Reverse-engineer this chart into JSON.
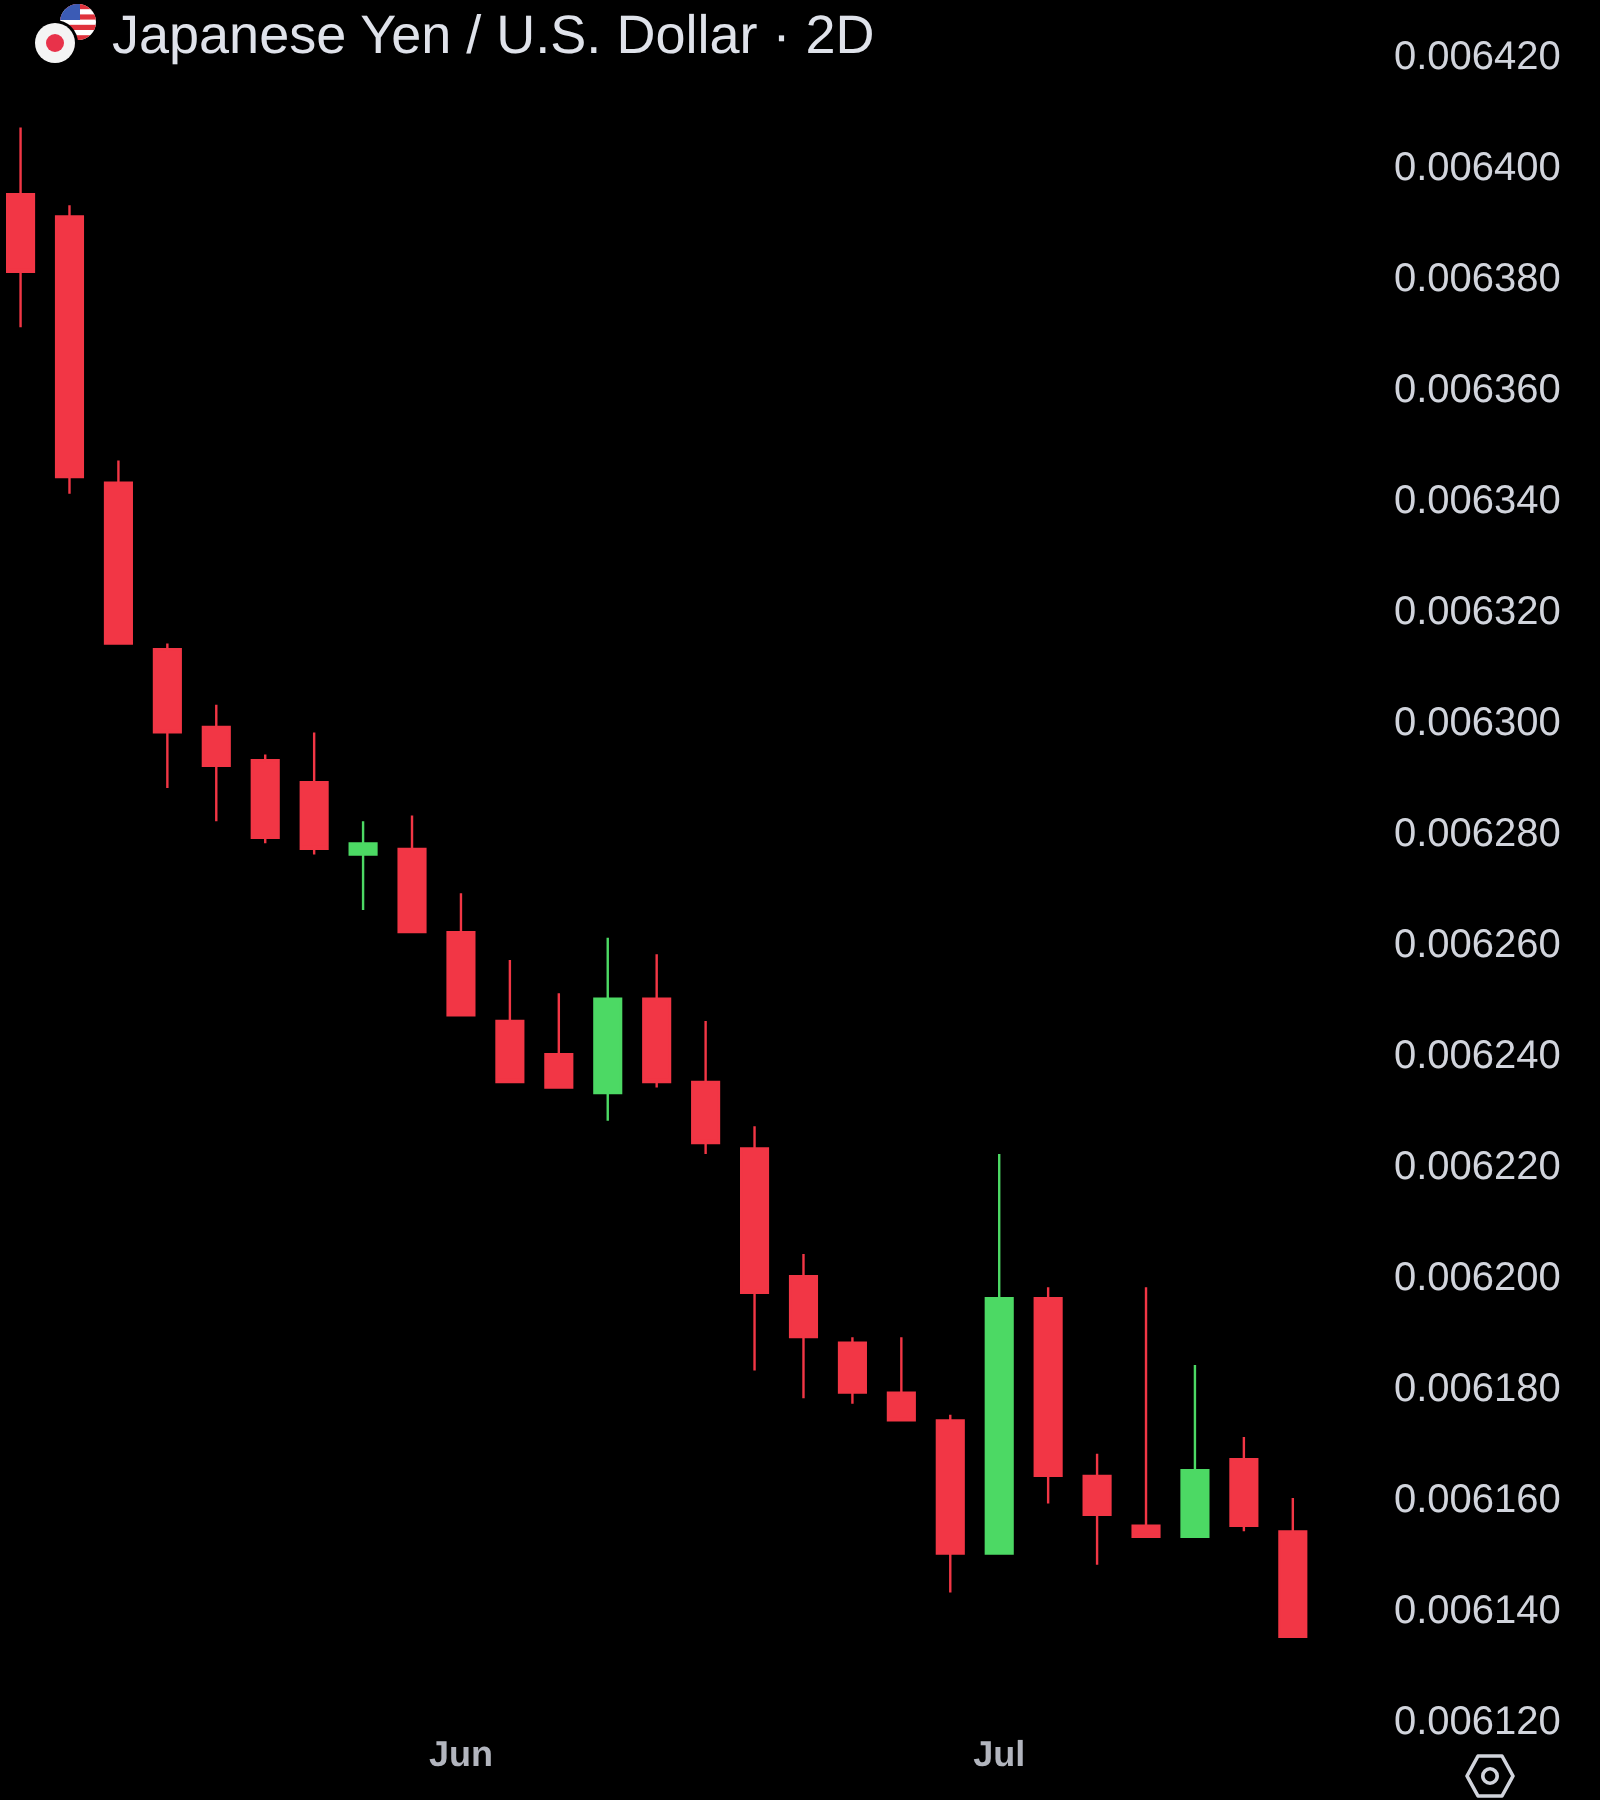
{
  "chart_data": {
    "type": "candlestick",
    "title": "Japanese Yen / U.S. Dollar · 2D",
    "categories": [
      null,
      null,
      null,
      null,
      null,
      null,
      null,
      null,
      null,
      "Jun",
      null,
      null,
      null,
      null,
      null,
      null,
      null,
      null,
      null,
      null,
      "Jul",
      null,
      null,
      null,
      null,
      null,
      null
    ],
    "ohlc": [
      [
        0.006395,
        0.006407,
        0.006371,
        0.006381
      ],
      [
        0.006391,
        0.006393,
        0.006341,
        0.006344
      ],
      [
        0.006343,
        0.006347,
        0.006314,
        0.006314
      ],
      [
        0.006313,
        0.006314,
        0.006288,
        0.006298
      ],
      [
        0.006299,
        0.006303,
        0.006282,
        0.006292
      ],
      [
        0.006293,
        0.006294,
        0.006278,
        0.006279
      ],
      [
        0.006289,
        0.006298,
        0.006276,
        0.006277
      ],
      [
        0.006276,
        0.006282,
        0.006266,
        0.006278
      ],
      [
        0.006277,
        0.006283,
        0.006262,
        0.006262
      ],
      [
        0.006262,
        0.006269,
        0.006247,
        0.006247
      ],
      [
        0.006246,
        0.006257,
        0.006235,
        0.006235
      ],
      [
        0.00624,
        0.006251,
        0.006234,
        0.006234
      ],
      [
        0.006233,
        0.006261,
        0.006228,
        0.00625
      ],
      [
        0.00625,
        0.006258,
        0.006234,
        0.006235
      ],
      [
        0.006235,
        0.006246,
        0.006222,
        0.006224
      ],
      [
        0.006223,
        0.006227,
        0.006183,
        0.006197
      ],
      [
        0.0062,
        0.006204,
        0.006178,
        0.006189
      ],
      [
        0.006188,
        0.006189,
        0.006177,
        0.006179
      ],
      [
        0.006179,
        0.006189,
        0.006174,
        0.006174
      ],
      [
        0.006174,
        0.006175,
        0.006143,
        0.00615
      ],
      [
        0.00615,
        0.006222,
        0.00615,
        0.006196
      ],
      [
        0.006196,
        0.006198,
        0.006159,
        0.006164
      ],
      [
        0.006164,
        0.006168,
        0.006148,
        0.006157
      ],
      [
        0.006155,
        0.006198,
        0.006153,
        0.006153
      ],
      [
        0.006153,
        0.006184,
        0.006153,
        0.006165
      ],
      [
        0.006167,
        0.006171,
        0.006154,
        0.006155
      ],
      [
        0.006154,
        0.00616,
        0.006135,
        0.006135
      ]
    ],
    "colors": [
      "#f23645",
      "#f23645",
      "#f23645",
      "#f23645",
      "#f23645",
      "#f23645",
      "#f23645",
      "#4cd964",
      "#f23645",
      "#f23645",
      "#f23645",
      "#f23645",
      "#4cd964",
      "#f23645",
      "#f23645",
      "#f23645",
      "#f23645",
      "#f23645",
      "#f23645",
      "#f23645",
      "#4cd964",
      "#f23645",
      "#f23645",
      "#f23645",
      "#4cd964",
      "#f23645",
      "#f23645"
    ],
    "ylim": [
      0.00612,
      0.00643
    ],
    "yticks": [
      {
        "value": 0.00612,
        "label": "0.006120"
      },
      {
        "value": 0.00614,
        "label": "0.006140"
      },
      {
        "value": 0.00616,
        "label": "0.006160"
      },
      {
        "value": 0.00618,
        "label": "0.006180"
      },
      {
        "value": 0.0062,
        "label": "0.006200"
      },
      {
        "value": 0.00622,
        "label": "0.006220"
      },
      {
        "value": 0.00624,
        "label": "0.006240"
      },
      {
        "value": 0.00626,
        "label": "0.006260"
      },
      {
        "value": 0.00628,
        "label": "0.006280"
      },
      {
        "value": 0.0063,
        "label": "0.006300"
      },
      {
        "value": 0.00632,
        "label": "0.006320"
      },
      {
        "value": 0.00634,
        "label": "0.006340"
      },
      {
        "value": 0.00636,
        "label": "0.006360"
      },
      {
        "value": 0.00638,
        "label": "0.006380"
      },
      {
        "value": 0.0064,
        "label": "0.006400"
      },
      {
        "value": 0.00642,
        "label": "0.006420"
      }
    ],
    "grid": false
  }
}
